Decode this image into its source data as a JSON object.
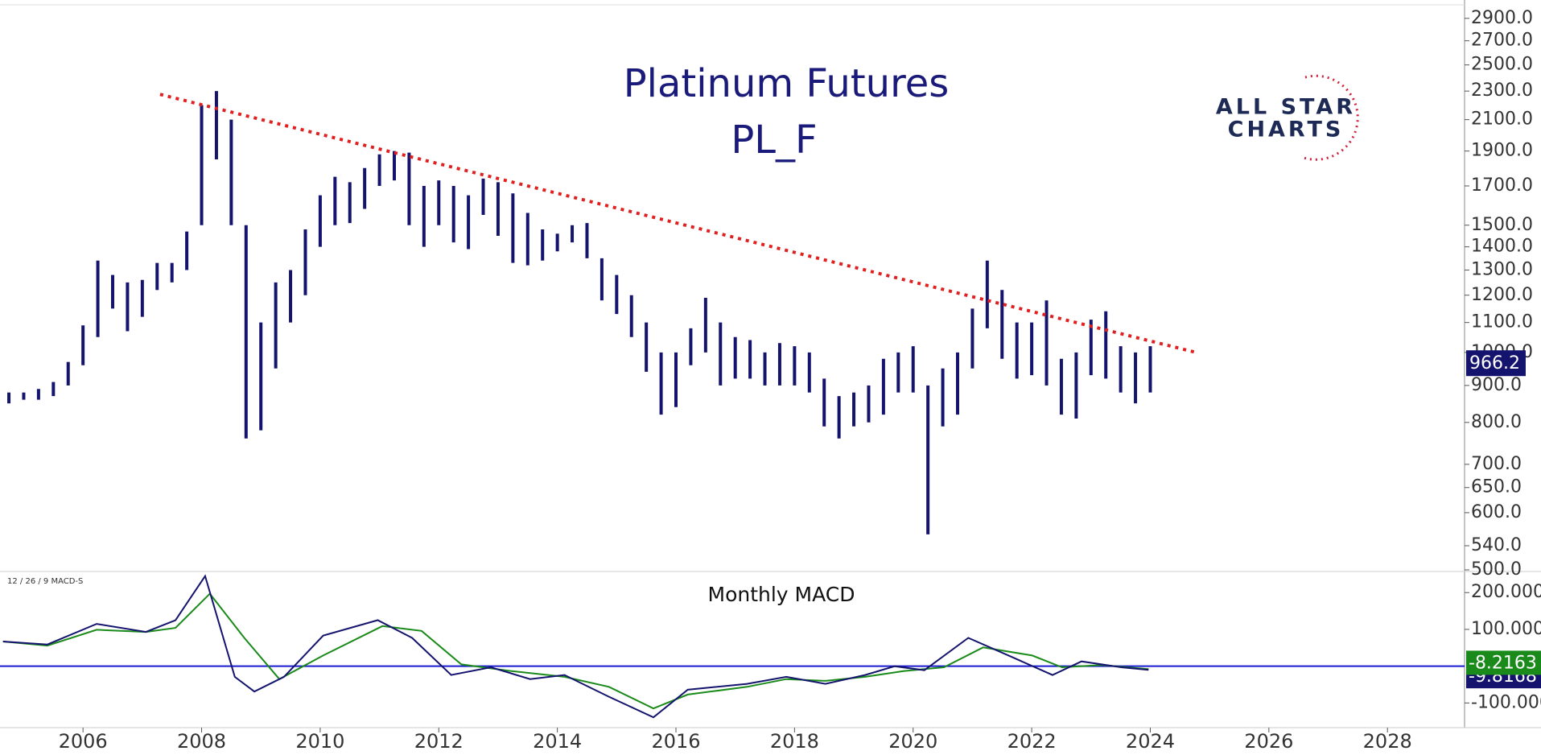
{
  "chart_data": [
    {
      "type": "range-bar",
      "title": "Platinum Futures",
      "subtitle": "PL_F",
      "logo": [
        "ALL STAR",
        "CHARTS"
      ],
      "log_scale": true,
      "color": "#14146e",
      "xlim": [
        2004.6,
        2029.3
      ],
      "xticks": [
        2006,
        2008,
        2010,
        2012,
        2014,
        2016,
        2018,
        2020,
        2022,
        2024,
        2026,
        2028
      ],
      "ylim": [
        500,
        3020
      ],
      "yticks": [
        {
          "value": 2900,
          "label": "2900.0"
        },
        {
          "value": 2700,
          "label": "2700.0"
        },
        {
          "value": 2500,
          "label": "2500.0"
        },
        {
          "value": 2300,
          "label": "2300.0"
        },
        {
          "value": 2100,
          "label": "2100.0"
        },
        {
          "value": 1900,
          "label": "1900.0"
        },
        {
          "value": 1700,
          "label": "1700.0"
        },
        {
          "value": 1500,
          "label": "1500.0"
        },
        {
          "value": 1400,
          "label": "1400.0"
        },
        {
          "value": 1300,
          "label": "1300.0"
        },
        {
          "value": 1200,
          "label": "1200.0"
        },
        {
          "value": 1100,
          "label": "1100.0"
        },
        {
          "value": 1000,
          "label": "1000.0"
        },
        {
          "value": 900,
          "label": "900.0"
        },
        {
          "value": 800,
          "label": "800.0"
        },
        {
          "value": 700,
          "label": "700.0"
        },
        {
          "value": 650,
          "label": "650.0"
        },
        {
          "value": 600,
          "label": "600.0"
        },
        {
          "value": 540,
          "label": "540.0"
        },
        {
          "value": 500,
          "label": "500.0"
        }
      ],
      "x": [
        2004.75,
        2005,
        2005.25,
        2005.5,
        2005.75,
        2006,
        2006.25,
        2006.5,
        2006.75,
        2007,
        2007.25,
        2007.5,
        2007.75,
        2008,
        2008.25,
        2008.5,
        2008.75,
        2009,
        2009.25,
        2009.5,
        2009.75,
        2010,
        2010.25,
        2010.5,
        2010.75,
        2011,
        2011.25,
        2011.5,
        2011.75,
        2012,
        2012.25,
        2012.5,
        2012.75,
        2013,
        2013.25,
        2013.5,
        2013.75,
        2014,
        2014.25,
        2014.5,
        2014.75,
        2015,
        2015.25,
        2015.5,
        2015.75,
        2016,
        2016.25,
        2016.5,
        2016.75,
        2017,
        2017.25,
        2017.5,
        2017.75,
        2018,
        2018.25,
        2018.5,
        2018.75,
        2019,
        2019.25,
        2019.5,
        2019.75,
        2020,
        2020.25,
        2020.5,
        2020.75,
        2021,
        2021.25,
        2021.5,
        2021.75,
        2022,
        2022.25,
        2022.5,
        2022.75,
        2023,
        2023.25,
        2023.5,
        2023.75,
        2024
      ],
      "high": [
        880,
        880,
        890,
        910,
        970,
        1090,
        1340,
        1280,
        1250,
        1260,
        1330,
        1330,
        1470,
        2200,
        2300,
        2100,
        1500,
        1100,
        1250,
        1300,
        1480,
        1650,
        1750,
        1720,
        1800,
        1880,
        1900,
        1890,
        1700,
        1730,
        1700,
        1650,
        1740,
        1720,
        1660,
        1560,
        1480,
        1460,
        1500,
        1510,
        1350,
        1280,
        1200,
        1100,
        1000,
        1000,
        1080,
        1190,
        1100,
        1050,
        1040,
        1000,
        1030,
        1020,
        1000,
        920,
        870,
        880,
        900,
        980,
        1000,
        1020,
        900,
        950,
        1000,
        1150,
        1340,
        1220,
        1100,
        1100,
        1180,
        980,
        1000,
        1110,
        1140,
        1020,
        1000,
        1020
      ],
      "low": [
        850,
        860,
        860,
        870,
        900,
        960,
        1050,
        1150,
        1070,
        1120,
        1220,
        1250,
        1300,
        1500,
        1850,
        1500,
        760,
        780,
        950,
        1100,
        1200,
        1400,
        1500,
        1510,
        1580,
        1700,
        1730,
        1500,
        1400,
        1500,
        1420,
        1390,
        1550,
        1450,
        1330,
        1320,
        1340,
        1380,
        1420,
        1350,
        1180,
        1130,
        1050,
        940,
        820,
        840,
        960,
        1000,
        900,
        920,
        920,
        900,
        900,
        900,
        880,
        790,
        760,
        790,
        800,
        820,
        880,
        880,
        560,
        790,
        820,
        950,
        1080,
        980,
        920,
        930,
        900,
        820,
        810,
        930,
        920,
        880,
        850,
        880
      ],
      "last_value": 966.2,
      "trendline": {
        "color": "#e02020",
        "x": [
          2007.3,
          2024.75
        ],
        "y": [
          2276,
          1001
        ]
      }
    },
    {
      "type": "line",
      "title": "Monthly MACD",
      "indicator": "12 / 26 / 9 MACD-S",
      "xlim": [
        2004.6,
        2029.3
      ],
      "ylim": [
        -167,
        253
      ],
      "yticks": [
        {
          "value": 200,
          "label": "200.000"
        },
        {
          "value": 100,
          "label": "100.000"
        },
        {
          "value": -100,
          "label": "-100.000"
        }
      ],
      "zero_line": {
        "value": 0,
        "color": "#1a1ad0"
      },
      "series": [
        {
          "name": "MACD",
          "color": "#14146e",
          "last_value": -9.8168,
          "x": [
            2004.65,
            2005.4,
            2006.23,
            2007.06,
            2007.56,
            2008.06,
            2008.56,
            2008.89,
            2009.39,
            2010.05,
            2010.97,
            2011.55,
            2012.21,
            2012.88,
            2013.54,
            2014.12,
            2014.87,
            2015.62,
            2016.2,
            2017.2,
            2017.86,
            2018.52,
            2019.19,
            2019.69,
            2020.19,
            2020.93,
            2021.68,
            2022.35,
            2022.84,
            2023.51,
            2023.97
          ],
          "values": [
            67,
            59,
            115,
            93,
            125,
            245,
            -29,
            -69,
            -29,
            83,
            125,
            77,
            -24,
            -3,
            -35,
            -24,
            -83,
            -139,
            -64,
            -48,
            -29,
            -48,
            -24,
            0,
            -11,
            77,
            24,
            -24,
            13,
            -3,
            -10
          ]
        },
        {
          "name": "Signal",
          "color": "#1a8a1a",
          "last_value": -8.2163,
          "x": [
            2004.65,
            2005.4,
            2006.23,
            2007.06,
            2007.56,
            2008.14,
            2008.72,
            2009.31,
            2010.05,
            2011.05,
            2011.71,
            2012.38,
            2013.21,
            2014.12,
            2014.87,
            2015.62,
            2016.2,
            2017.2,
            2017.86,
            2018.52,
            2019.19,
            2019.85,
            2020.52,
            2021.18,
            2022.01,
            2022.51,
            2023.18,
            2023.97
          ],
          "values": [
            67,
            56,
            99,
            93,
            104,
            197,
            77,
            -35,
            29,
            109,
            96,
            5,
            -13,
            -29,
            -56,
            -115,
            -77,
            -56,
            -35,
            -40,
            -29,
            -13,
            -3,
            51,
            29,
            -3,
            3,
            -8
          ]
        }
      ]
    }
  ]
}
